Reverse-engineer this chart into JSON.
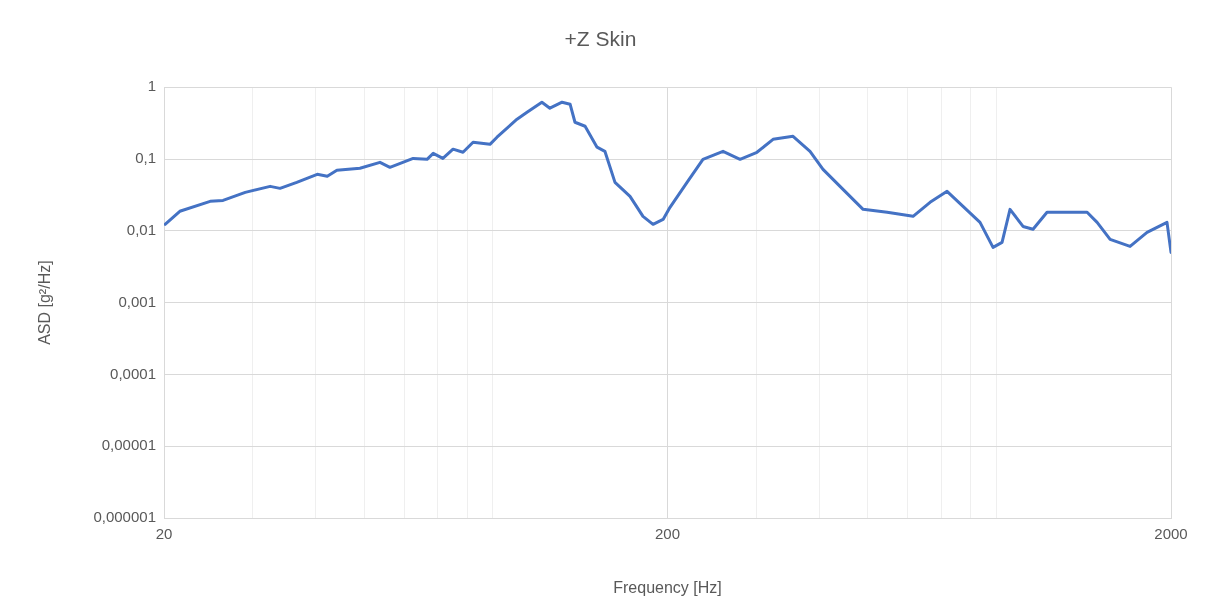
{
  "chart_data": {
    "type": "line",
    "title": "+Z Skin",
    "xlabel": "Frequency [Hz]",
    "ylabel": "ASD [g²/Hz]",
    "log": "xy",
    "grid": true,
    "legend": false,
    "marker": "none",
    "line_style": "solid",
    "xlim": [
      20,
      2000
    ],
    "ylim": [
      1e-06,
      1
    ],
    "xticks": [
      20,
      {
        "value": 30,
        "label": null
      },
      {
        "value": 40,
        "label": null
      },
      {
        "value": 50,
        "label": null
      },
      {
        "value": 60,
        "label": null
      },
      {
        "value": 70,
        "label": null
      },
      {
        "value": 80,
        "label": null
      },
      {
        "value": 90,
        "label": null
      },
      200,
      {
        "value": 300,
        "label": null
      },
      {
        "value": 400,
        "label": null
      },
      {
        "value": 500,
        "label": null
      },
      {
        "value": 600,
        "label": null
      },
      {
        "value": 700,
        "label": null
      },
      {
        "value": 800,
        "label": null
      },
      {
        "value": 900,
        "label": null
      },
      2000
    ],
    "yticks": [
      {
        "value": 1e-06,
        "label": "0,000001"
      },
      {
        "value": 1e-05,
        "label": "0,00001"
      },
      {
        "value": 0.0001,
        "label": "0,0001"
      },
      {
        "value": 0.001,
        "label": "0,001"
      },
      {
        "value": 0.01,
        "label": "0,01"
      },
      {
        "value": 0.1,
        "label": "0,1"
      },
      1
    ],
    "series": [
      {
        "color": "#4472c4",
        "x": [
          20.1,
          21.5,
          24.7,
          26.2,
          29.0,
          32.5,
          34.0,
          36.7,
          40.3,
          42.2,
          44.1,
          49.0,
          53.7,
          56.2,
          62.5,
          66.6,
          68.5,
          71.6,
          75.0,
          78.5,
          82.2,
          88.8,
          91.7,
          100.5,
          105.2,
          112.6,
          116.8,
          123.5,
          128.1,
          131.0,
          137.2,
          144.9,
          150.2,
          157.3,
          168.5,
          178.8,
          187.2,
          196.0,
          202.3,
          218.7,
          235.2,
          257.8,
          278.7,
          301.1,
          324.1,
          355.1,
          383.8,
          407.3,
          440.2,
          489.2,
          546.1,
          614.8,
          664.5,
          718.3,
          772.6,
          835.1,
          886.3,
          923.6,
          957.9,
          1016.6,
          1064.2,
          1134.5,
          1278,
          1362.7,
          1426.6,
          1514,
          1658.6,
          1792.4,
          1963.7,
          2000
        ],
        "values": [
          0.0123,
          0.0187,
          0.0257,
          0.0265,
          0.0343,
          0.0416,
          0.039,
          0.0473,
          0.0612,
          0.0574,
          0.0696,
          0.0742,
          0.0899,
          0.0766,
          0.102,
          0.099,
          0.12,
          0.102,
          0.137,
          0.124,
          0.171,
          0.16,
          0.201,
          0.358,
          0.448,
          0.618,
          0.51,
          0.618,
          0.58,
          0.325,
          0.286,
          0.146,
          0.128,
          0.0473,
          0.0302,
          0.0159,
          0.0123,
          0.0144,
          0.0212,
          0.0473,
          0.099,
          0.128,
          0.099,
          0.124,
          0.188,
          0.207,
          0.128,
          0.0718,
          0.0416,
          0.0199,
          0.0181,
          0.0159,
          0.0249,
          0.0355,
          0.0219,
          0.0131,
          0.00587,
          0.00689,
          0.0199,
          0.0115,
          0.0105,
          0.0181,
          0.0181,
          0.0181,
          0.0131,
          0.00759,
          0.00606,
          0.0095,
          0.0131,
          0.005
        ]
      }
    ]
  }
}
